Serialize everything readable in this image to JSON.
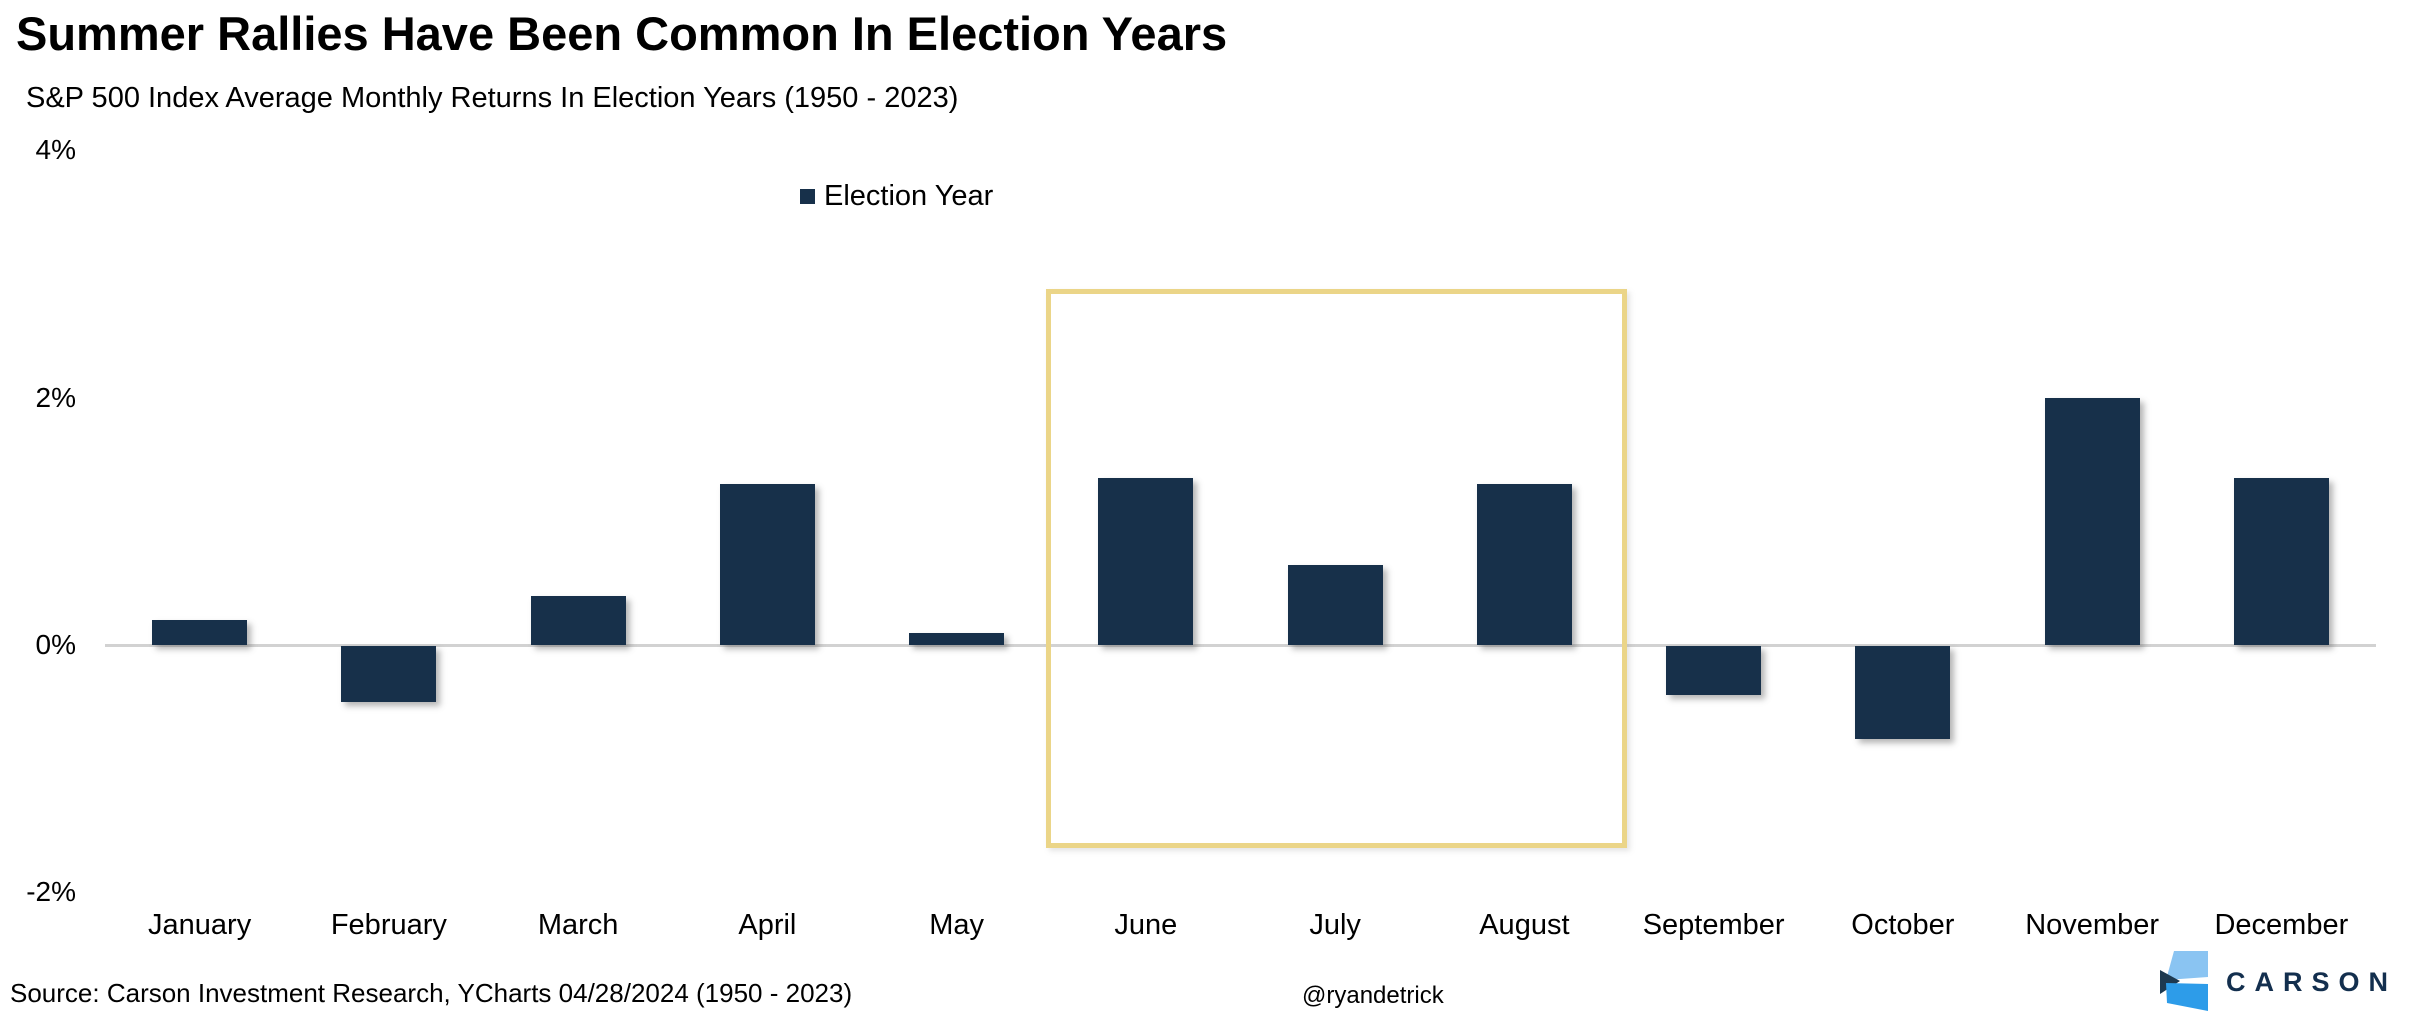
{
  "title": "Summer Rallies Have Been Common In Election Years",
  "subtitle": "S&P 500 Index Average Monthly Returns In Election Years (1950 - 2023)",
  "legend": {
    "label": "Election Year",
    "swatch_color": "#17304a"
  },
  "chart_data": {
    "type": "bar",
    "title": "Summer Rallies Have Been Common In Election Years",
    "subtitle": "S&P 500 Index Average Monthly Returns In Election Years (1950 - 2023)",
    "series_name": "Election Year",
    "categories": [
      "January",
      "February",
      "March",
      "April",
      "May",
      "June",
      "July",
      "August",
      "September",
      "October",
      "November",
      "December"
    ],
    "values": [
      0.2,
      -0.45,
      0.4,
      1.3,
      0.1,
      1.35,
      0.65,
      1.3,
      -0.4,
      -0.75,
      2.0,
      1.35
    ],
    "xlabel": "",
    "ylabel": "",
    "y_ticks": [
      "4%",
      "2%",
      "0%",
      "-2%"
    ],
    "y_tick_values": [
      4,
      2,
      0,
      -2
    ],
    "ylim": [
      -2.4,
      4.0
    ],
    "gridlines": "zero-line-only",
    "bar_color": "#17304a",
    "axis_line_color": "#d2d2d2",
    "legend_position": "top-center",
    "highlight": {
      "months": [
        "June",
        "July",
        "August"
      ],
      "border_color": "#ebd588",
      "meaning": "summer months"
    }
  },
  "footer": {
    "source": "Source: Carson Investment Research, YCharts 04/28/2024 (1950 - 2023)",
    "handle": "@ryandetrick",
    "brand": "CARSON",
    "logo_colors": {
      "light_blue": "#8ac4f2",
      "mid_blue": "#2d9ce9",
      "dark_navy": "#1d3950",
      "wordmark": "#132f4e"
    }
  }
}
